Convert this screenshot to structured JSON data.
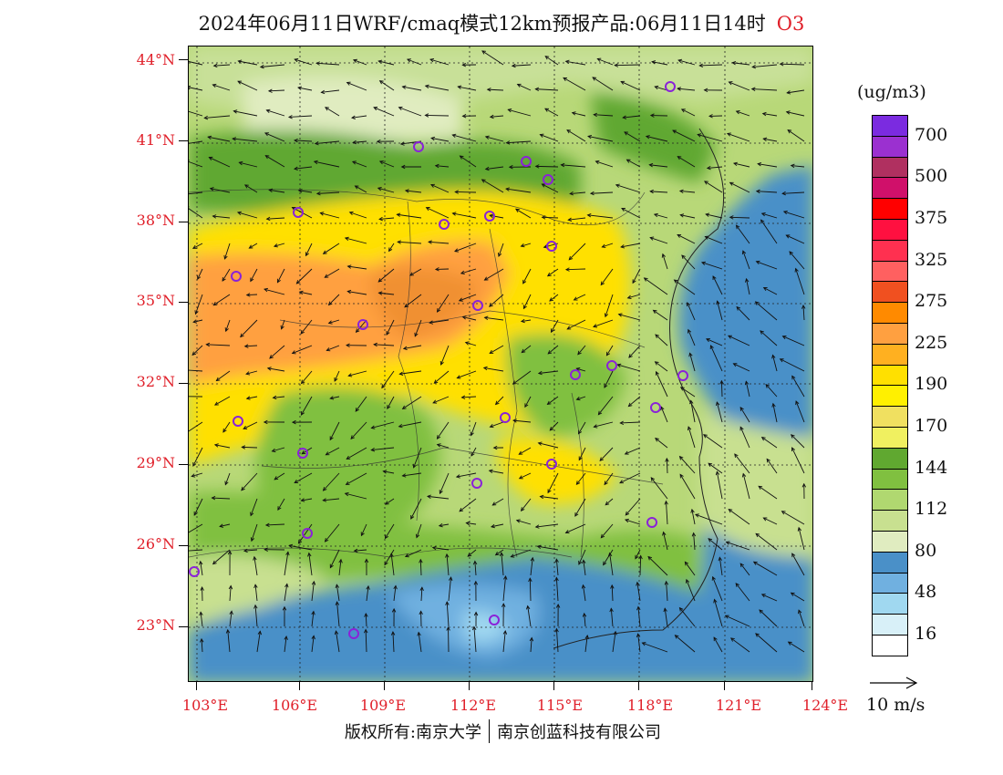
{
  "title": {
    "text": "2024年06月11日WRF/cmaq模式12km预报产品:06月11日14时",
    "species": "O3"
  },
  "lat_labels": [
    "44°N",
    "41°N",
    "38°N",
    "35°N",
    "32°N",
    "29°N",
    "26°N",
    "23°N"
  ],
  "lon_labels": [
    "103°E",
    "106°E",
    "109°E",
    "112°E",
    "115°E",
    "118°E",
    "121°E",
    "124°E"
  ],
  "legend": {
    "unit": "(ug/m3)",
    "colors": [
      "#7b2be0",
      "#9b30d0",
      "#b03060",
      "#d0106a",
      "#ff0000",
      "#ff1040",
      "#ff3050",
      "#ff6060",
      "#f05020",
      "#ff8a00",
      "#ffa040",
      "#ffb020",
      "#ffe000",
      "#fff000",
      "#f0e060",
      "#f0f060",
      "#60a830",
      "#80c040",
      "#b0d870",
      "#c8e090",
      "#e0ecc0",
      "#4a90c8",
      "#70b0e0",
      "#a0d8f0",
      "#d8f0f8",
      "#ffffff"
    ],
    "labels": [
      "700",
      "500",
      "375",
      "325",
      "275",
      "225",
      "190",
      "170",
      "144",
      "112",
      "80",
      "48",
      "16"
    ]
  },
  "vector_key": {
    "label": "10 m/s"
  },
  "footer": {
    "left": "版权所有:南京大学",
    "right": "南京创蓝科技有限公司"
  }
}
